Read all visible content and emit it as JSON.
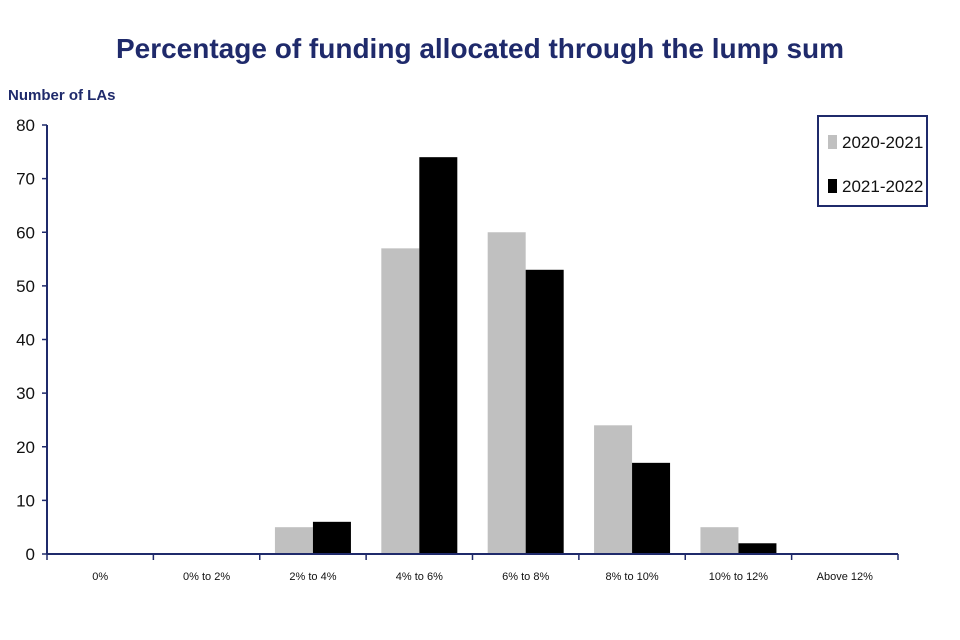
{
  "chart_data": {
    "type": "bar",
    "title": "Percentage of funding allocated through the lump sum",
    "ylabel": "Number of LAs",
    "xlabel": "",
    "categories": [
      "0%",
      "0% to 2%",
      "2% to 4%",
      "4% to 6%",
      "6% to 8%",
      "8% to 10%",
      "10% to 12%",
      "Above 12%"
    ],
    "series": [
      {
        "name": "2020-2021",
        "color": "#c0c0c0",
        "values": [
          0,
          0,
          5,
          57,
          60,
          24,
          5,
          0
        ]
      },
      {
        "name": "2021-2022",
        "color": "#000000",
        "values": [
          0,
          0,
          6,
          74,
          53,
          17,
          2,
          0
        ]
      }
    ],
    "ylim": [
      0,
      80
    ],
    "yticks": [
      0,
      10,
      20,
      30,
      40,
      50,
      60,
      70,
      80
    ],
    "grid": false,
    "legend_position": "top-right",
    "axis_color": "#1f2a6b",
    "title_color": "#1f2a6b"
  }
}
